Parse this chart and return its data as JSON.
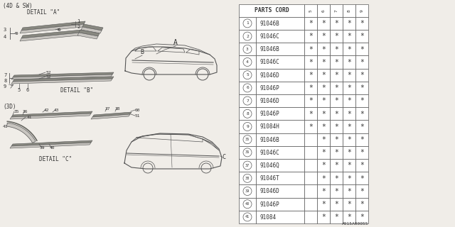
{
  "bg_color": "#f0ede8",
  "table_header": "PARTS CORD",
  "col_headers": [
    "5",
    "6",
    "7",
    "8",
    "9"
  ],
  "rows": [
    {
      "num": "1",
      "part": "91046B",
      "stars": [
        true,
        true,
        true,
        true,
        true
      ]
    },
    {
      "num": "2",
      "part": "91046C",
      "stars": [
        true,
        true,
        true,
        true,
        true
      ]
    },
    {
      "num": "3",
      "part": "91046B",
      "stars": [
        true,
        true,
        true,
        true,
        true
      ]
    },
    {
      "num": "4",
      "part": "91046C",
      "stars": [
        true,
        true,
        true,
        true,
        true
      ]
    },
    {
      "num": "5",
      "part": "91046D",
      "stars": [
        true,
        true,
        true,
        true,
        true
      ]
    },
    {
      "num": "6",
      "part": "91046P",
      "stars": [
        true,
        true,
        true,
        true,
        true
      ]
    },
    {
      "num": "7",
      "part": "91046D",
      "stars": [
        true,
        true,
        true,
        true,
        true
      ]
    },
    {
      "num": "8",
      "part": "91046P",
      "stars": [
        true,
        true,
        true,
        true,
        true
      ]
    },
    {
      "num": "9",
      "part": "91084H",
      "stars": [
        true,
        true,
        true,
        true,
        true
      ]
    },
    {
      "num": "35",
      "part": "91046B",
      "stars": [
        false,
        true,
        true,
        true,
        true
      ]
    },
    {
      "num": "36",
      "part": "91046C",
      "stars": [
        false,
        true,
        true,
        true,
        true
      ]
    },
    {
      "num": "37",
      "part": "91046Q",
      "stars": [
        false,
        true,
        true,
        true,
        true
      ]
    },
    {
      "num": "38",
      "part": "91046T",
      "stars": [
        false,
        true,
        true,
        true,
        true
      ]
    },
    {
      "num": "39",
      "part": "91046D",
      "stars": [
        false,
        true,
        true,
        true,
        true
      ]
    },
    {
      "num": "40",
      "part": "91046P",
      "stars": [
        false,
        true,
        true,
        true,
        true
      ]
    },
    {
      "num": "41",
      "part": "91084",
      "stars": [
        false,
        true,
        true,
        true,
        true
      ]
    }
  ],
  "label_top": "(4D & SW)",
  "label_bottom": "(3D)",
  "detail_a": "DETAIL \"A\"",
  "detail_b": "DETAIL \"B\"",
  "detail_c": "DETAIL \"C\"",
  "footer": "A915A00055",
  "lc": "#555555",
  "tc": "#333333"
}
